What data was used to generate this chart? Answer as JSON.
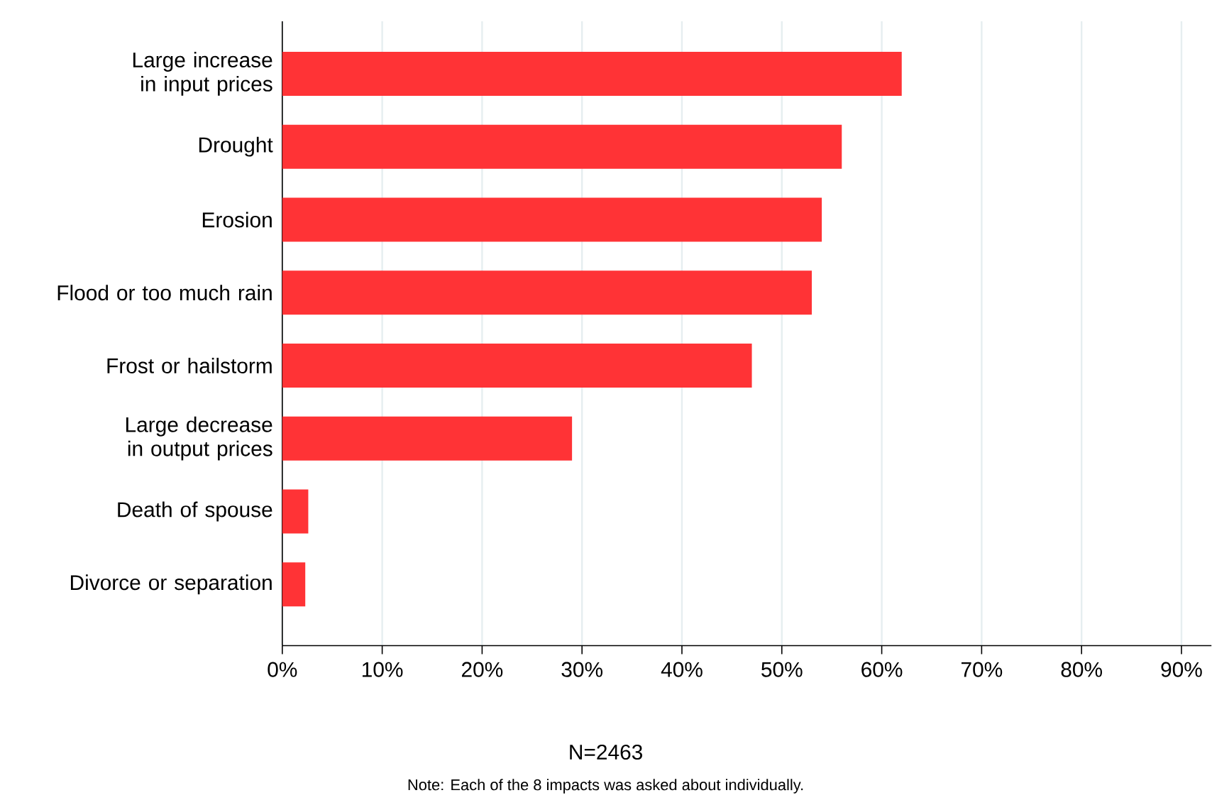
{
  "chart_data": {
    "type": "bar",
    "orientation": "horizontal",
    "categories": [
      "Large increase in input prices",
      "Drought",
      "Erosion",
      "Flood or too much rain",
      "Frost or hailstorm",
      "Large decrease in output prices",
      "Death of spouse",
      "Divorce or separation"
    ],
    "values": [
      62,
      56,
      54,
      53,
      47,
      29,
      2.6,
      2.3
    ],
    "color": "#ff3336",
    "xlim": [
      0,
      93
    ],
    "xticks": [
      {
        "value": 0,
        "label": "0%"
      },
      {
        "value": 10,
        "label": "10%"
      },
      {
        "value": 20,
        "label": "20%"
      },
      {
        "value": 30,
        "label": "30%"
      },
      {
        "value": 40,
        "label": "40%"
      },
      {
        "value": 50,
        "label": "50%"
      },
      {
        "value": 60,
        "label": "60%"
      },
      {
        "value": 70,
        "label": "70%"
      },
      {
        "value": 80,
        "label": "80%"
      },
      {
        "value": 90,
        "label": "90%"
      }
    ],
    "xlabel": "N=2463",
    "annotations": [
      "Note: Each of the 8 impacts was asked about individually."
    ],
    "grid": "x"
  }
}
